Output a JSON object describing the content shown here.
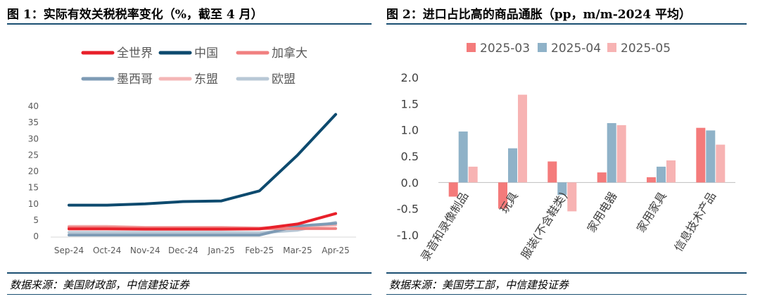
{
  "left": {
    "title": "图 1：实际有效关税税率变化（%，截至 4 月）",
    "source": "数据来源：美国财政部，中信建投证券"
  },
  "right": {
    "title": "图 2：进口占比高的商品通胀（pp，m/m-2024 平均）",
    "source": "数据来源：美国劳工部，中信建投证券"
  },
  "chart_data": [
    {
      "type": "line",
      "title": "实际有效关税税率变化（%，截至 4 月）",
      "x": [
        "Sep-24",
        "Oct-24",
        "Nov-24",
        "Dec-24",
        "Jan-25",
        "Feb-25",
        "Mar-25",
        "Apr-25"
      ],
      "ylim": [
        0,
        40
      ],
      "yticks": [
        "0",
        "5",
        "10",
        "15",
        "20",
        "25",
        "30",
        "35",
        "40"
      ],
      "series": [
        {
          "name": "全世界",
          "color": "#e8202a",
          "values": [
            2.3,
            2.3,
            2.2,
            2.2,
            2.2,
            2.3,
            3.8,
            7.0
          ]
        },
        {
          "name": "中国",
          "color": "#0d4a6e",
          "values": [
            9.6,
            9.6,
            10.0,
            10.7,
            10.9,
            14.0,
            25.0,
            37.5
          ]
        },
        {
          "name": "加拿大",
          "color": "#f08080",
          "values": [
            2.8,
            2.8,
            2.6,
            2.6,
            2.6,
            2.4,
            2.4,
            2.4
          ]
        },
        {
          "name": "墨西哥",
          "color": "#7e9bb5",
          "values": [
            0.4,
            0.4,
            0.4,
            0.4,
            0.4,
            0.4,
            3.2,
            4.0
          ]
        },
        {
          "name": "东盟",
          "color": "#f4b6b6",
          "values": [
            3.1,
            3.1,
            2.8,
            2.8,
            2.8,
            2.6,
            3.0,
            3.5
          ]
        },
        {
          "name": "欧盟",
          "color": "#b8c8d6",
          "values": [
            1.2,
            1.2,
            1.2,
            1.2,
            1.2,
            1.1,
            1.9,
            4.3
          ]
        }
      ]
    },
    {
      "type": "bar",
      "title": "进口占比高的商品通胀（pp，m/m-2024 平均）",
      "categories": [
        "录音和录像制品",
        "玩具",
        "服装(不含鞋类)",
        "家用电器",
        "家用家具",
        "信息技术产品"
      ],
      "ylim": [
        -1.0,
        2.0
      ],
      "yticks": [
        "-1.0",
        "-0.5",
        "0.0",
        "0.5",
        "1.0",
        "1.5",
        "2.0"
      ],
      "series": [
        {
          "name": "2025-03",
          "color": "#f47b7b",
          "values": [
            -0.27,
            -0.5,
            0.4,
            0.19,
            0.1,
            1.04
          ]
        },
        {
          "name": "2025-04",
          "color": "#8fb2c8",
          "values": [
            0.97,
            0.65,
            -0.24,
            1.13,
            0.3,
            0.99
          ]
        },
        {
          "name": "2025-05",
          "color": "#f7b3b3",
          "values": [
            0.3,
            1.67,
            -0.55,
            1.09,
            0.42,
            0.72
          ]
        }
      ]
    }
  ]
}
